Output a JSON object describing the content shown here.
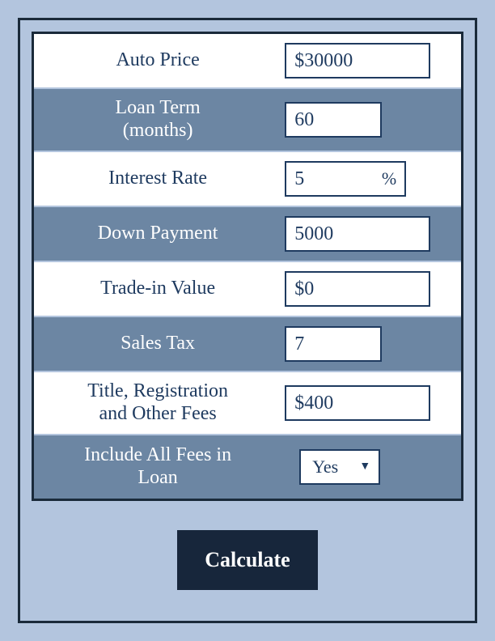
{
  "colors": {
    "page_bg": "#b3c5de",
    "row_white_bg": "#ffffff",
    "row_blue_bg": "#6c86a3",
    "text_dark": "#1e3a5f",
    "text_light": "#ffffff",
    "border": "#1a2a3a",
    "button_bg": "#17263b"
  },
  "form": {
    "rows": [
      {
        "label": "Auto Price",
        "value": "$30000",
        "field_width": "wide"
      },
      {
        "label": "Loan Term (months)",
        "value": "60",
        "field_width": "med"
      },
      {
        "label": "Interest Rate",
        "value": "5",
        "suffix": "%",
        "field_width": "rate"
      },
      {
        "label": "Down Payment",
        "value": "5000",
        "field_width": "wide"
      },
      {
        "label": "Trade-in Value",
        "value": "$0",
        "field_width": "wide"
      },
      {
        "label": "Sales Tax",
        "value": "7",
        "field_width": "med"
      },
      {
        "label": "Title, Registration and Other Fees",
        "value": "$400",
        "field_width": "wide"
      },
      {
        "label": "Include All Fees in Loan",
        "value": "Yes",
        "type": "select"
      }
    ]
  },
  "button": {
    "label": "Calculate"
  }
}
